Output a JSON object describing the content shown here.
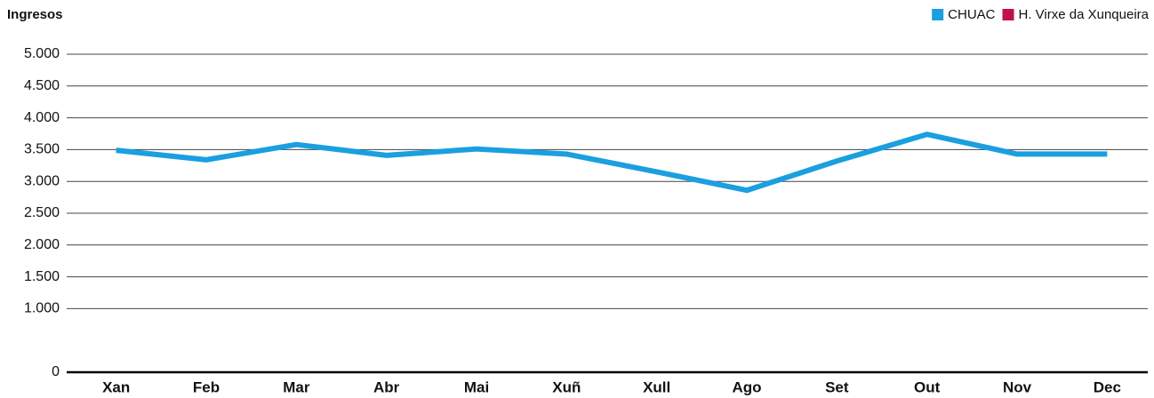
{
  "chart_data": {
    "type": "line",
    "title": "Ingresos",
    "categories": [
      "Xan",
      "Feb",
      "Mar",
      "Abr",
      "Mai",
      "Xuñ",
      "Xull",
      "Ago",
      "Set",
      "Out",
      "Nov",
      "Dec"
    ],
    "series": [
      {
        "name": "CHUAC",
        "color": "#1a9fe0",
        "values": [
          3490,
          3340,
          3580,
          3410,
          3510,
          3430,
          3150,
          2860,
          3320,
          3740,
          3430,
          3430
        ]
      },
      {
        "name": "H. Virxe da Xunqueira",
        "color": "#c0114a",
        "values": [
          null,
          null,
          null,
          null,
          null,
          null,
          null,
          null,
          null,
          null,
          null,
          null
        ]
      }
    ],
    "ylim": [
      0,
      5000
    ],
    "yticks": [
      0,
      {
        "value": 1000,
        "label": "1.000"
      },
      {
        "value": 1500,
        "label": "1.500"
      },
      {
        "value": 2000,
        "label": "2.000"
      },
      {
        "value": 2500,
        "label": "2.500"
      },
      {
        "value": 3000,
        "label": "3.000"
      },
      {
        "value": 3500,
        "label": "3.500"
      },
      {
        "value": 4000,
        "label": "4.000"
      },
      {
        "value": 4500,
        "label": "4.500"
      },
      {
        "value": 5000,
        "label": "5.000"
      }
    ],
    "grid": true,
    "legend": "top-right"
  }
}
